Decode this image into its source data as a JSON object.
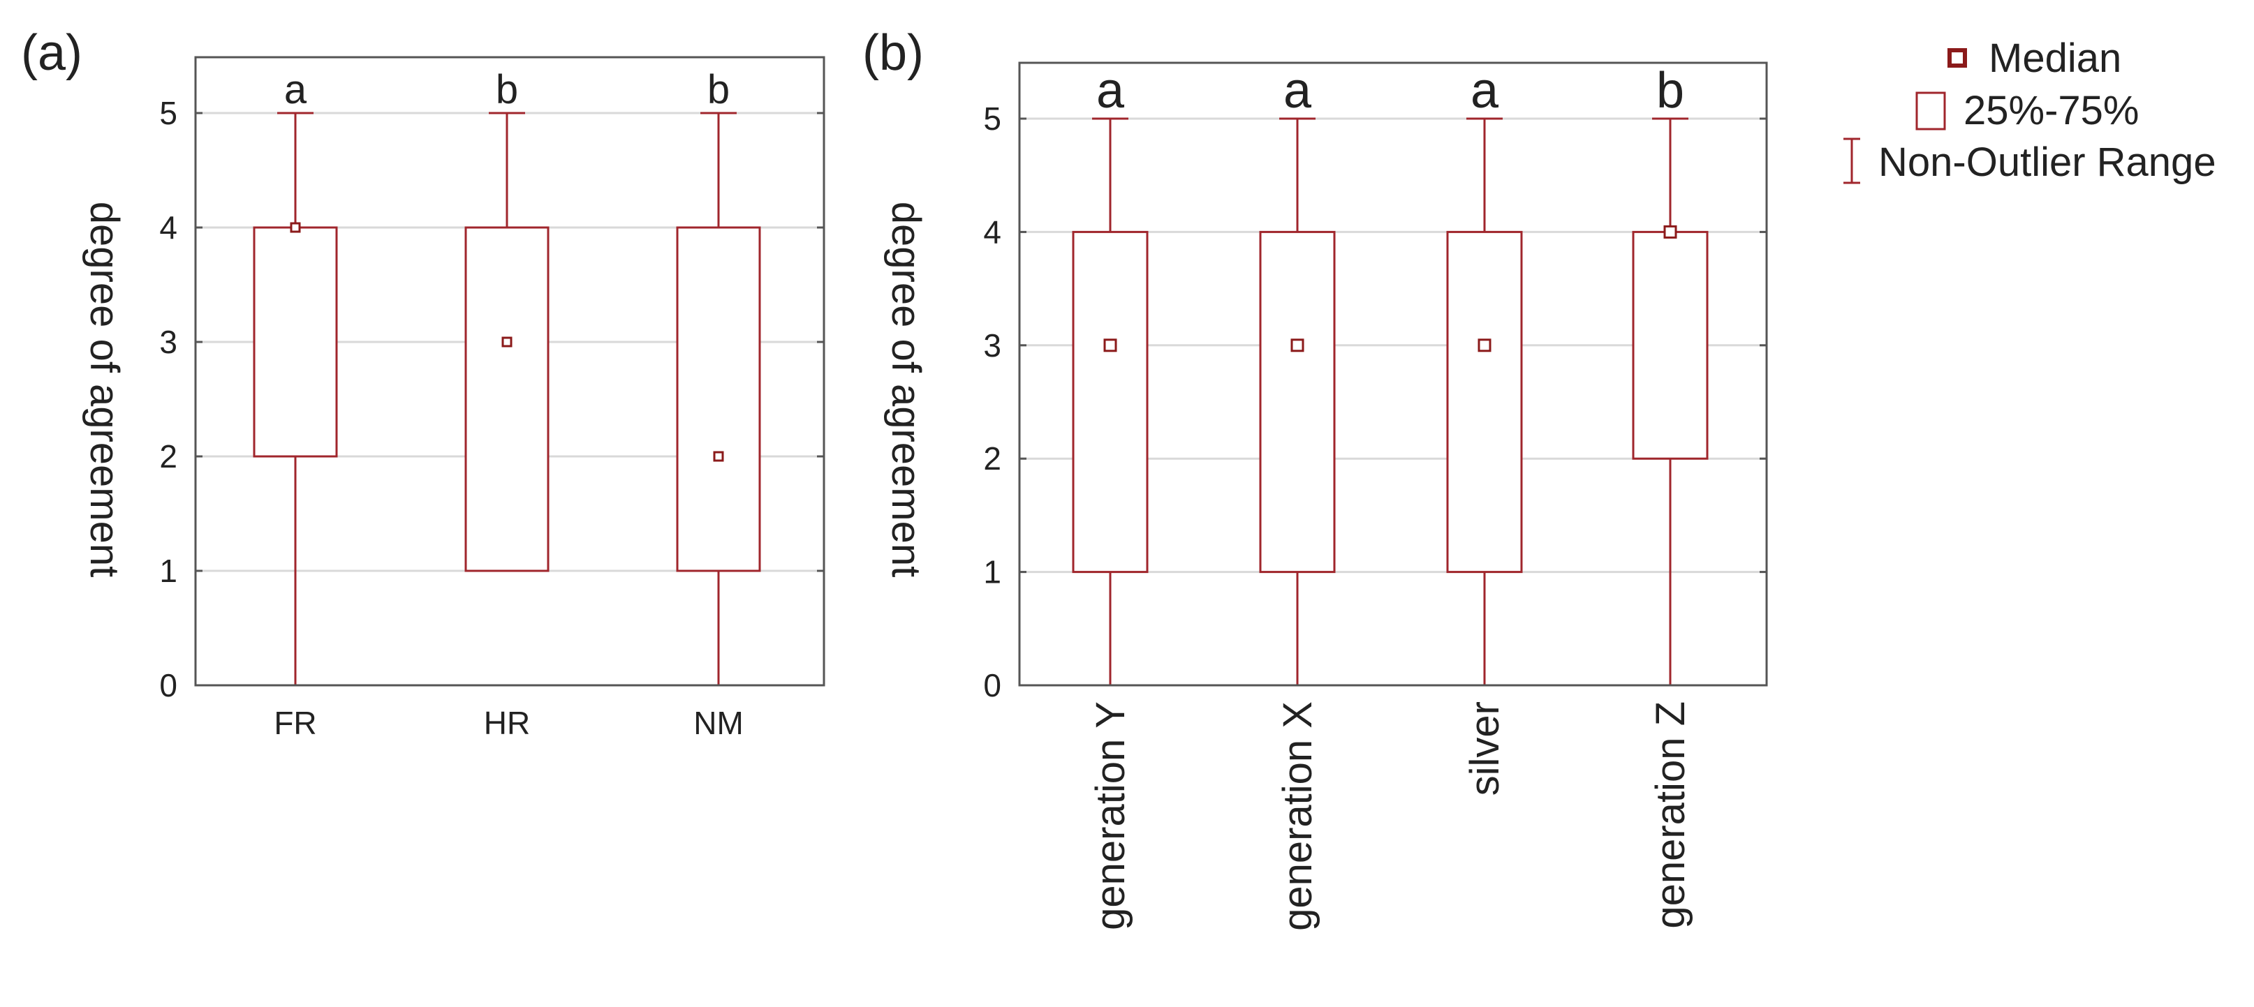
{
  "colors": {
    "box": "#a0262c",
    "median": "#8b1a1a"
  },
  "legend": {
    "median_label": "Median",
    "iqr_label": "25%-75%",
    "range_label": "Non-Outlier Range"
  },
  "chart_data": [
    {
      "type": "boxplot",
      "panel_label": "(a)",
      "ylabel": "degree of agreement",
      "ylim": [
        0,
        5.5
      ],
      "yticks": [
        0,
        1,
        2,
        3,
        4,
        5
      ],
      "grid": true,
      "categories": [
        "FR",
        "HR",
        "NM"
      ],
      "median": [
        4,
        3,
        2
      ],
      "q1": [
        2,
        1,
        1
      ],
      "q3": [
        4,
        4,
        4
      ],
      "whisker_low": [
        0,
        1,
        0
      ],
      "whisker_high": [
        5,
        5,
        5
      ],
      "group_letters": [
        "a",
        "b",
        "b"
      ]
    },
    {
      "type": "boxplot",
      "panel_label": "(b)",
      "ylabel": "degree of agreement",
      "ylim": [
        0,
        5.5
      ],
      "yticks": [
        0,
        1,
        2,
        3,
        4,
        5
      ],
      "grid": true,
      "categories": [
        "generation Y",
        "generation X",
        "silver",
        "generation Z"
      ],
      "median": [
        3,
        3,
        3,
        4
      ],
      "q1": [
        1,
        1,
        1,
        2
      ],
      "q3": [
        4,
        4,
        4,
        4
      ],
      "whisker_low": [
        0,
        0,
        0,
        0
      ],
      "whisker_high": [
        5,
        5,
        5,
        5
      ],
      "group_letters": [
        "a",
        "a",
        "a",
        "b"
      ]
    }
  ]
}
